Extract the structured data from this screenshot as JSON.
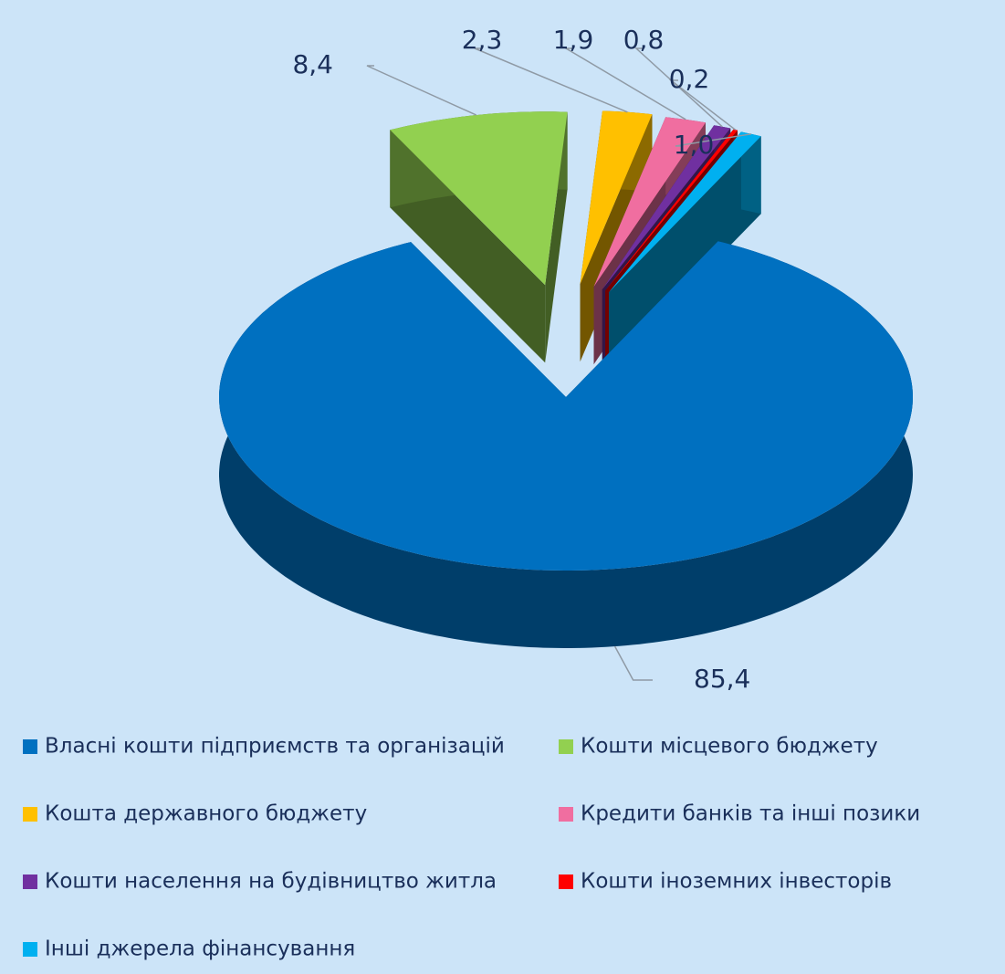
{
  "chart_data": {
    "type": "pie",
    "categories": [
      "Власні кошти підприємств та організацій",
      "Кошти місцевого бюджету",
      "Кошта державного бюджету",
      "Кредити банків та інші позики",
      "Кошти населення на будівництво житла",
      "Кошти іноземних інвесторів",
      "Інші джерела фінансування"
    ],
    "values": [
      85.4,
      8.4,
      2.3,
      1.9,
      0.8,
      0.2,
      1.0
    ],
    "value_labels": [
      "85,4",
      "8,4",
      "2,3",
      "1,9",
      "0,8",
      "0,2",
      "1,0"
    ],
    "colors": [
      "#0070c0",
      "#92d050",
      "#ffc000",
      "#f06ea0",
      "#7030a0",
      "#ff0000",
      "#00b0f0"
    ],
    "legend": "bottom"
  }
}
